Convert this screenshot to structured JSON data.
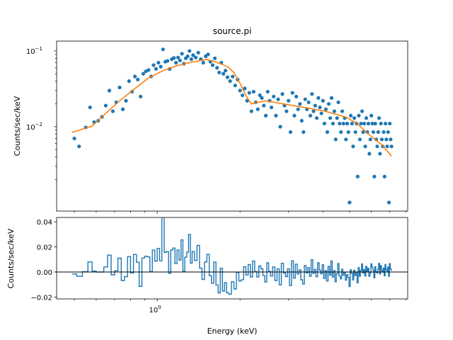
{
  "chart_data": [
    {
      "type": "scatter",
      "title": "source.pi",
      "xlabel": "",
      "ylabel": "Counts/sec/keV",
      "xscale": "log",
      "yscale": "log",
      "xlim": [
        0.431,
        8.13
      ],
      "ylim": [
        0.00077,
        0.135
      ],
      "x_ticks": [
        {
          "value": 1,
          "label": "10",
          "exp": "0"
        }
      ],
      "y_ticks": [
        {
          "value": 0.01,
          "label": "10",
          "exp": "−2"
        },
        {
          "value": 0.1,
          "label": "10",
          "exp": "−1"
        }
      ],
      "colors": {
        "data": "#1f77b4",
        "model": "#ff7f0e"
      },
      "data_points": [
        [
          0.5,
          0.007
        ],
        [
          0.52,
          0.0055
        ],
        [
          0.55,
          0.0098
        ],
        [
          0.57,
          0.018
        ],
        [
          0.59,
          0.0115
        ],
        [
          0.61,
          0.012
        ],
        [
          0.63,
          0.0135
        ],
        [
          0.65,
          0.019
        ],
        [
          0.67,
          0.03
        ],
        [
          0.69,
          0.016
        ],
        [
          0.71,
          0.021
        ],
        [
          0.73,
          0.033
        ],
        [
          0.75,
          0.017
        ],
        [
          0.77,
          0.022
        ],
        [
          0.79,
          0.04
        ],
        [
          0.81,
          0.029
        ],
        [
          0.83,
          0.046
        ],
        [
          0.85,
          0.042
        ],
        [
          0.87,
          0.025
        ],
        [
          0.89,
          0.05
        ],
        [
          0.91,
          0.054
        ],
        [
          0.93,
          0.056
        ],
        [
          0.95,
          0.046
        ],
        [
          0.97,
          0.065
        ],
        [
          0.99,
          0.058
        ],
        [
          1.01,
          0.07
        ],
        [
          1.03,
          0.062
        ],
        [
          1.05,
          0.105
        ],
        [
          1.07,
          0.072
        ],
        [
          1.09,
          0.074
        ],
        [
          1.11,
          0.058
        ],
        [
          1.13,
          0.078
        ],
        [
          1.15,
          0.081
        ],
        [
          1.17,
          0.07
        ],
        [
          1.19,
          0.082
        ],
        [
          1.21,
          0.075
        ],
        [
          1.23,
          0.092
        ],
        [
          1.25,
          0.068
        ],
        [
          1.27,
          0.08
        ],
        [
          1.29,
          0.085
        ],
        [
          1.31,
          0.1
        ],
        [
          1.33,
          0.078
        ],
        [
          1.35,
          0.088
        ],
        [
          1.38,
          0.082
        ],
        [
          1.41,
          0.095
        ],
        [
          1.44,
          0.078
        ],
        [
          1.47,
          0.07
        ],
        [
          1.5,
          0.085
        ],
        [
          1.53,
          0.09
        ],
        [
          1.56,
          0.072
        ],
        [
          1.59,
          0.065
        ],
        [
          1.62,
          0.08
        ],
        [
          1.65,
          0.06
        ],
        [
          1.68,
          0.052
        ],
        [
          1.71,
          0.07
        ],
        [
          1.74,
          0.05
        ],
        [
          1.77,
          0.055
        ],
        [
          1.8,
          0.045
        ],
        [
          1.84,
          0.04
        ],
        [
          1.88,
          0.046
        ],
        [
          1.92,
          0.035
        ],
        [
          1.96,
          0.042
        ],
        [
          2.0,
          0.03
        ],
        [
          2.04,
          0.026
        ],
        [
          2.08,
          0.032
        ],
        [
          2.12,
          0.022
        ],
        [
          2.16,
          0.028
        ],
        [
          2.2,
          0.016
        ],
        [
          2.24,
          0.029
        ],
        [
          2.28,
          0.021
        ],
        [
          2.32,
          0.017
        ],
        [
          2.36,
          0.026
        ],
        [
          2.4,
          0.024
        ],
        [
          2.44,
          0.019
        ],
        [
          2.48,
          0.014
        ],
        [
          2.52,
          0.029
        ],
        [
          2.56,
          0.022
        ],
        [
          2.6,
          0.018
        ],
        [
          2.65,
          0.025
        ],
        [
          2.7,
          0.014
        ],
        [
          2.75,
          0.023
        ],
        [
          2.8,
          0.01
        ],
        [
          2.85,
          0.027
        ],
        [
          2.9,
          0.019
        ],
        [
          2.95,
          0.016
        ],
        [
          3.0,
          0.022
        ],
        [
          3.05,
          0.0085
        ],
        [
          3.1,
          0.028
        ],
        [
          3.15,
          0.014
        ],
        [
          3.2,
          0.025
        ],
        [
          3.25,
          0.017
        ],
        [
          3.3,
          0.02
        ],
        [
          3.35,
          0.012
        ],
        [
          3.4,
          0.0085
        ],
        [
          3.45,
          0.023
        ],
        [
          3.5,
          0.017
        ],
        [
          3.55,
          0.021
        ],
        [
          3.6,
          0.014
        ],
        [
          3.65,
          0.027
        ],
        [
          3.7,
          0.016
        ],
        [
          3.75,
          0.019
        ],
        [
          3.8,
          0.013
        ],
        [
          3.85,
          0.024
        ],
        [
          3.9,
          0.018
        ],
        [
          3.95,
          0.015
        ],
        [
          4.0,
          0.022
        ],
        [
          4.05,
          0.011
        ],
        [
          4.1,
          0.017
        ],
        [
          4.15,
          0.0085
        ],
        [
          4.2,
          0.02
        ],
        [
          4.25,
          0.013
        ],
        [
          4.3,
          0.024
        ],
        [
          4.35,
          0.011
        ],
        [
          4.4,
          0.016
        ],
        [
          4.45,
          0.0068
        ],
        [
          4.5,
          0.013
        ],
        [
          4.55,
          0.021
        ],
        [
          4.6,
          0.011
        ],
        [
          4.65,
          0.0085
        ],
        [
          4.7,
          0.016
        ],
        [
          4.75,
          0.011
        ],
        [
          4.8,
          0.013
        ],
        [
          4.85,
          0.0068
        ],
        [
          4.9,
          0.011
        ],
        [
          4.95,
          0.0085
        ],
        [
          5.0,
          0.001
        ],
        [
          5.05,
          0.014
        ],
        [
          5.1,
          0.011
        ],
        [
          5.15,
          0.0055
        ],
        [
          5.2,
          0.013
        ],
        [
          5.25,
          0.0085
        ],
        [
          5.3,
          0.011
        ],
        [
          5.35,
          0.0022
        ],
        [
          5.4,
          0.014
        ],
        [
          5.45,
          0.0068
        ],
        [
          5.5,
          0.011
        ],
        [
          5.55,
          0.016
        ],
        [
          5.6,
          0.0085
        ],
        [
          5.65,
          0.011
        ],
        [
          5.7,
          0.0055
        ],
        [
          5.75,
          0.013
        ],
        [
          5.8,
          0.0085
        ],
        [
          5.85,
          0.011
        ],
        [
          5.9,
          0.0044
        ],
        [
          5.95,
          0.0068
        ],
        [
          6.0,
          0.014
        ],
        [
          6.05,
          0.011
        ],
        [
          6.1,
          0.0085
        ],
        [
          6.15,
          0.0022
        ],
        [
          6.2,
          0.011
        ],
        [
          6.25,
          0.0068
        ],
        [
          6.3,
          0.0055
        ],
        [
          6.35,
          0.0085
        ],
        [
          6.4,
          0.013
        ],
        [
          6.45,
          0.0044
        ],
        [
          6.5,
          0.011
        ],
        [
          6.55,
          0.0068
        ],
        [
          6.6,
          0.0055
        ],
        [
          6.65,
          0.0085
        ],
        [
          6.7,
          0.0022
        ],
        [
          6.75,
          0.011
        ],
        [
          6.8,
          0.0068
        ],
        [
          6.85,
          0.0055
        ],
        [
          6.9,
          0.0085
        ],
        [
          6.95,
          0.001
        ],
        [
          7.0,
          0.011
        ],
        [
          7.05,
          0.0068
        ],
        [
          7.1,
          0.0055
        ]
      ],
      "model_points": [
        [
          0.49,
          0.0084
        ],
        [
          0.58,
          0.0102
        ],
        [
          0.65,
          0.015
        ],
        [
          0.73,
          0.022
        ],
        [
          0.83,
          0.032
        ],
        [
          0.93,
          0.044
        ],
        [
          1.05,
          0.055
        ],
        [
          1.18,
          0.064
        ],
        [
          1.33,
          0.071
        ],
        [
          1.5,
          0.077
        ],
        [
          1.59,
          0.074
        ],
        [
          1.73,
          0.066
        ],
        [
          1.81,
          0.061
        ],
        [
          1.9,
          0.052
        ],
        [
          2.01,
          0.036
        ],
        [
          2.11,
          0.025
        ],
        [
          2.2,
          0.02
        ],
        [
          2.33,
          0.021
        ],
        [
          2.47,
          0.022
        ],
        [
          2.87,
          0.02
        ],
        [
          3.42,
          0.018
        ],
        [
          4.09,
          0.016
        ],
        [
          4.88,
          0.0133
        ],
        [
          5.34,
          0.0109
        ],
        [
          5.83,
          0.0081
        ],
        [
          6.57,
          0.0057
        ],
        [
          7.1,
          0.0041
        ]
      ]
    },
    {
      "type": "line",
      "title": "",
      "xlabel": "Energy (keV)",
      "ylabel": "Counts/sec/keV",
      "xscale": "log",
      "xlim": [
        0.431,
        8.13
      ],
      "ylim": [
        -0.0215,
        0.0435
      ],
      "x_ticks": [
        {
          "value": 1,
          "label": "10",
          "exp": "0"
        }
      ],
      "y_ticks": [
        {
          "value": -0.02,
          "label": "−0.02"
        },
        {
          "value": 0.0,
          "label": "0.00"
        },
        {
          "value": 0.02,
          "label": "0.02"
        },
        {
          "value": 0.04,
          "label": "0.04"
        }
      ],
      "reference_line": 0,
      "colors": {
        "residual": "#1f77b4"
      }
    }
  ]
}
